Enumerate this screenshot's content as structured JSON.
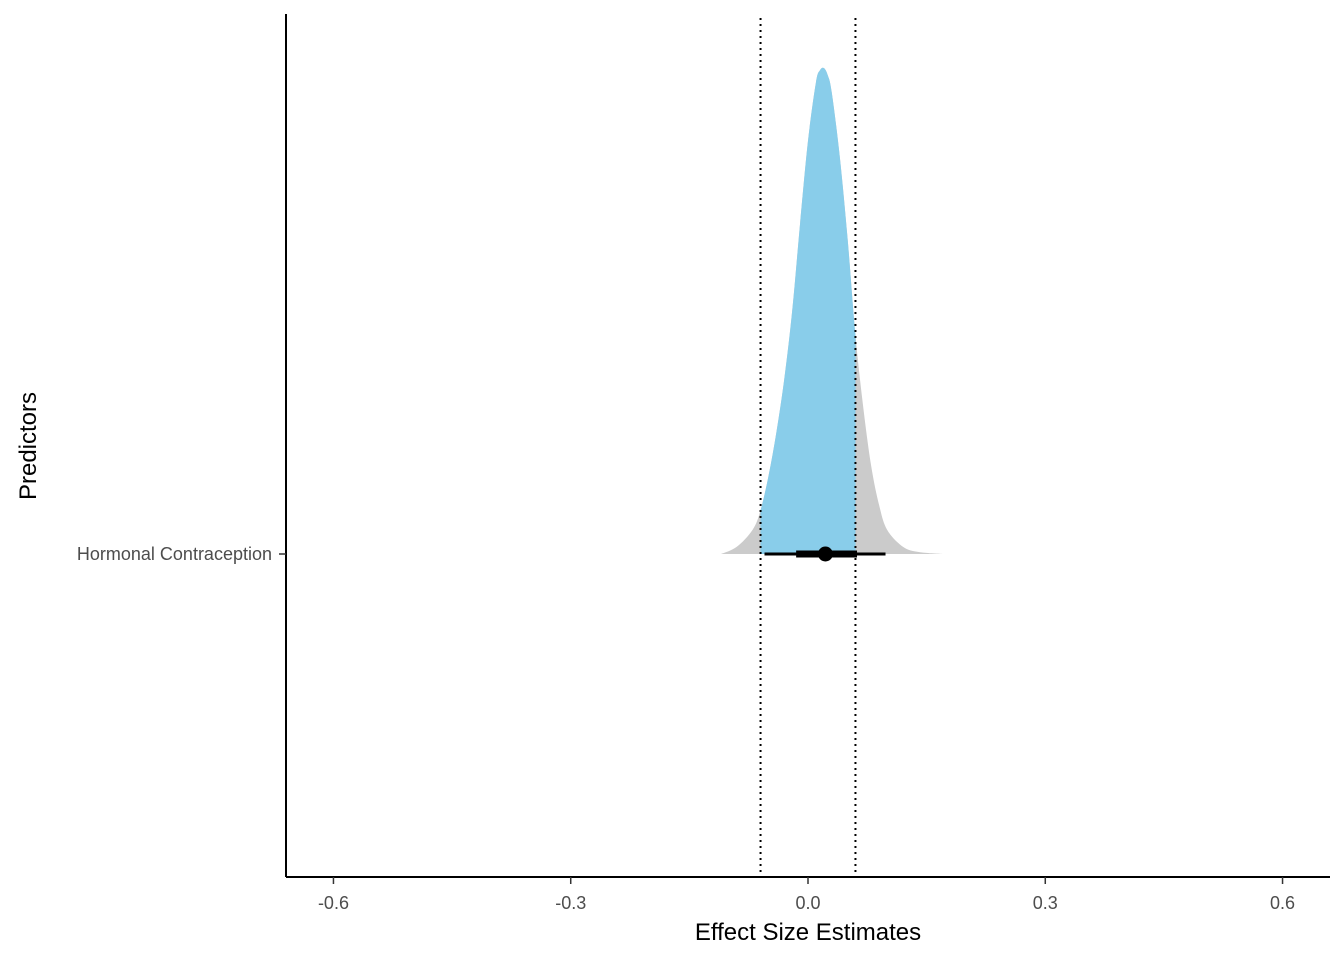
{
  "chart_data": {
    "type": "density",
    "title": "",
    "xlabel": "Effect Size Estimates",
    "ylabel": "Predictors",
    "xlim": [
      -0.66,
      0.66
    ],
    "x_ticks": [
      -0.6,
      -0.3,
      0.0,
      0.3,
      0.6
    ],
    "x_tick_labels": [
      "-0.6",
      "-0.3",
      "0.0",
      "0.3",
      "0.6"
    ],
    "categories": [
      "Hormonal Contraception"
    ],
    "grid": false,
    "legend": "none",
    "rope": [
      -0.06,
      0.06
    ],
    "series": [
      {
        "category": "Hormonal Contraception",
        "point_estimate": 0.022,
        "inner_interval": [
          -0.015,
          0.062
        ],
        "outer_interval": [
          -0.055,
          0.098
        ],
        "density": {
          "x": [
            -0.11,
            -0.09,
            -0.07,
            -0.06,
            -0.05,
            -0.04,
            -0.03,
            -0.02,
            -0.01,
            0.0,
            0.01,
            0.015,
            0.02,
            0.025,
            0.03,
            0.04,
            0.05,
            0.06,
            0.07,
            0.08,
            0.09,
            0.1,
            0.12,
            0.14,
            0.17
          ],
          "height": [
            0.0,
            0.015,
            0.05,
            0.09,
            0.16,
            0.25,
            0.36,
            0.5,
            0.68,
            0.85,
            0.97,
            0.995,
            1.0,
            0.985,
            0.95,
            0.82,
            0.65,
            0.45,
            0.3,
            0.18,
            0.1,
            0.05,
            0.015,
            0.004,
            0.0
          ]
        }
      }
    ],
    "colors": {
      "inside_rope": "#89CDEA",
      "outside_rope": "#CBCBCB",
      "interval": "#000000",
      "axis": "#000000"
    }
  }
}
